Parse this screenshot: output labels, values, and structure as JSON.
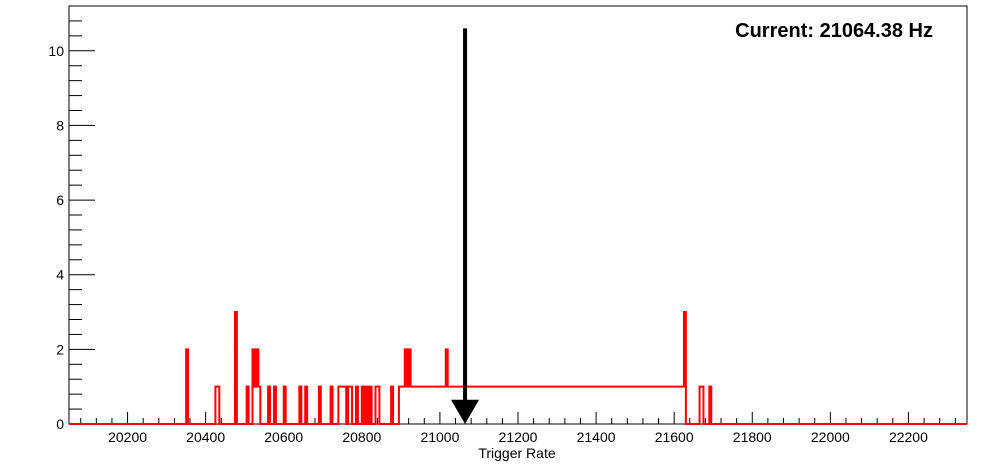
{
  "chart_data": {
    "type": "histogram",
    "annotation": "Current: 21064.38 Hz",
    "xlabel": "Trigger Rate",
    "ylabel": "",
    "xlim": [
      20050,
      22350
    ],
    "ylim": [
      0,
      11.2
    ],
    "x_ticks": [
      20200,
      20400,
      20600,
      20800,
      21000,
      21200,
      21400,
      21600,
      21800,
      22000,
      22200
    ],
    "y_ticks": [
      0,
      2,
      4,
      6,
      8,
      10
    ],
    "bin_width": 5,
    "line_color": "#ff0000",
    "marker": {
      "x": 21064.38,
      "color": "#000000",
      "shape": "down-arrow"
    },
    "bins": [
      [
        20350,
        2
      ],
      [
        20425,
        1
      ],
      [
        20430,
        1
      ],
      [
        20475,
        3
      ],
      [
        20505,
        1
      ],
      [
        20520,
        2
      ],
      [
        20525,
        1
      ],
      [
        20530,
        2
      ],
      [
        20535,
        1
      ],
      [
        20560,
        1
      ],
      [
        20575,
        1
      ],
      [
        20600,
        1
      ],
      [
        20640,
        1
      ],
      [
        20655,
        1
      ],
      [
        20690,
        1
      ],
      [
        20720,
        1
      ],
      [
        20740,
        1
      ],
      [
        20745,
        1
      ],
      [
        20750,
        1
      ],
      [
        20755,
        1
      ],
      [
        20765,
        1
      ],
      [
        20770,
        1
      ],
      [
        20785,
        1
      ],
      [
        20800,
        1
      ],
      [
        20810,
        1
      ],
      [
        20820,
        1
      ],
      [
        20835,
        1
      ],
      [
        20840,
        1
      ],
      [
        20875,
        1
      ],
      [
        20895,
        1
      ],
      [
        20900,
        1
      ],
      [
        20905,
        1
      ],
      [
        20910,
        2
      ],
      [
        20915,
        1
      ],
      [
        20920,
        2
      ],
      [
        20925,
        1
      ],
      [
        20930,
        1
      ],
      [
        20935,
        1
      ],
      [
        20940,
        1
      ],
      [
        20945,
        1
      ],
      [
        20950,
        1
      ],
      [
        20955,
        1
      ],
      [
        20960,
        1
      ],
      [
        20965,
        1
      ],
      [
        20970,
        1
      ],
      [
        20975,
        1
      ],
      [
        20980,
        1
      ],
      [
        20985,
        1
      ],
      [
        20990,
        1
      ],
      [
        20995,
        1
      ],
      [
        21000,
        1
      ],
      [
        21005,
        1
      ],
      [
        21010,
        1
      ],
      [
        21015,
        2
      ],
      [
        21020,
        1
      ],
      [
        21025,
        1
      ],
      [
        21030,
        1
      ],
      [
        21035,
        1
      ],
      [
        21040,
        1
      ],
      [
        21045,
        1
      ],
      [
        21050,
        1
      ],
      [
        21055,
        1
      ],
      [
        21060,
        1
      ],
      [
        21065,
        1
      ],
      [
        21070,
        1
      ],
      [
        21075,
        1
      ],
      [
        21080,
        1
      ],
      [
        21085,
        1
      ],
      [
        21090,
        1
      ],
      [
        21095,
        1
      ],
      [
        21100,
        1
      ],
      [
        21105,
        1
      ],
      [
        21110,
        1
      ],
      [
        21115,
        1
      ],
      [
        21120,
        1
      ],
      [
        21125,
        1
      ],
      [
        21130,
        1
      ],
      [
        21135,
        1
      ],
      [
        21140,
        1
      ],
      [
        21145,
        1
      ],
      [
        21150,
        1
      ],
      [
        21155,
        1
      ],
      [
        21160,
        1
      ],
      [
        21165,
        1
      ],
      [
        21170,
        1
      ],
      [
        21175,
        1
      ],
      [
        21180,
        1
      ],
      [
        21185,
        1
      ],
      [
        21190,
        1
      ],
      [
        21195,
        1
      ],
      [
        21200,
        1
      ],
      [
        21205,
        1
      ],
      [
        21210,
        1
      ],
      [
        21215,
        1
      ],
      [
        21220,
        1
      ],
      [
        21225,
        1
      ],
      [
        21230,
        1
      ],
      [
        21235,
        1
      ],
      [
        21240,
        1
      ],
      [
        21245,
        1
      ],
      [
        21250,
        1
      ],
      [
        21255,
        1
      ],
      [
        21260,
        1
      ],
      [
        21265,
        1
      ],
      [
        21270,
        1
      ],
      [
        21275,
        1
      ],
      [
        21280,
        1
      ],
      [
        21285,
        1
      ],
      [
        21290,
        1
      ],
      [
        21295,
        1
      ],
      [
        21300,
        1
      ],
      [
        21305,
        1
      ],
      [
        21310,
        1
      ],
      [
        21315,
        1
      ],
      [
        21320,
        1
      ],
      [
        21325,
        1
      ],
      [
        21330,
        1
      ],
      [
        21335,
        1
      ],
      [
        21340,
        1
      ],
      [
        21345,
        1
      ],
      [
        21350,
        1
      ],
      [
        21355,
        1
      ],
      [
        21360,
        1
      ],
      [
        21365,
        1
      ],
      [
        21370,
        1
      ],
      [
        21375,
        1
      ],
      [
        21380,
        1
      ],
      [
        21385,
        1
      ],
      [
        21390,
        1
      ],
      [
        21395,
        1
      ],
      [
        21400,
        1
      ],
      [
        21405,
        1
      ],
      [
        21410,
        1
      ],
      [
        21415,
        1
      ],
      [
        21420,
        1
      ],
      [
        21425,
        1
      ],
      [
        21430,
        1
      ],
      [
        21435,
        1
      ],
      [
        21440,
        1
      ],
      [
        21445,
        1
      ],
      [
        21450,
        1
      ],
      [
        21455,
        1
      ],
      [
        21460,
        1
      ],
      [
        21465,
        1
      ],
      [
        21470,
        1
      ],
      [
        21475,
        1
      ],
      [
        21480,
        1
      ],
      [
        21485,
        1
      ],
      [
        21490,
        1
      ],
      [
        21495,
        1
      ],
      [
        21500,
        1
      ],
      [
        21505,
        1
      ],
      [
        21510,
        1
      ],
      [
        21515,
        1
      ],
      [
        21520,
        1
      ],
      [
        21525,
        1
      ],
      [
        21530,
        1
      ],
      [
        21535,
        1
      ],
      [
        21540,
        1
      ],
      [
        21545,
        1
      ],
      [
        21550,
        1
      ],
      [
        21555,
        1
      ],
      [
        21560,
        1
      ],
      [
        21565,
        1
      ],
      [
        21570,
        1
      ],
      [
        21575,
        1
      ],
      [
        21580,
        1
      ],
      [
        21585,
        1
      ],
      [
        21590,
        1
      ],
      [
        21595,
        1
      ],
      [
        21600,
        1
      ],
      [
        21605,
        1
      ],
      [
        21610,
        1
      ],
      [
        21615,
        1
      ],
      [
        21620,
        1
      ],
      [
        21625,
        3
      ],
      [
        21665,
        1
      ],
      [
        21670,
        1
      ],
      [
        21690,
        1
      ]
    ]
  }
}
